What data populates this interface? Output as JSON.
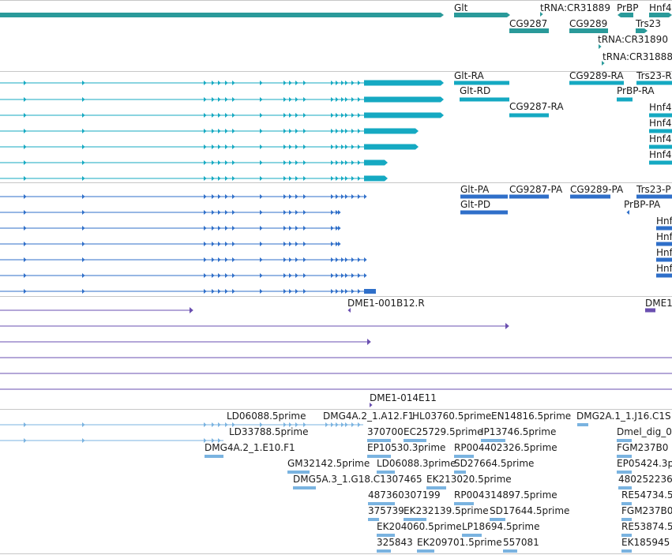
{
  "colors": {
    "gene": "#2a9a9a",
    "transcript": "#15a9c2",
    "protein": "#2f6fc9",
    "est": "#6a4fb0",
    "cdna": "#7ab3e0",
    "separator": "#c7c7c7"
  },
  "tracks": {
    "genes": {
      "labels": [
        "Glt",
        "tRNA:CR31889",
        "PrBP",
        "Hnf4",
        "CG9287",
        "CG9289",
        "Trs23",
        "tRNA:CR31890",
        "tRNA:CR31888"
      ]
    },
    "transcripts": {
      "labels": [
        "Glt-RA",
        "Glt-RD",
        "CG9287-RA",
        "CG9289-RA",
        "Trs23-R",
        "PrBP-RA",
        "Hnf4",
        "Hnf4",
        "Hnf4",
        "Hnf4"
      ]
    },
    "proteins": {
      "labels": [
        "Glt-PA",
        "Glt-PD",
        "CG9287-PA",
        "CG9289-PA",
        "Trs23-P",
        "PrBP-PA",
        "Hnf",
        "Hnf",
        "Hnf",
        "Hnf"
      ]
    },
    "ests": {
      "labels": [
        "DME1-001B12.R",
        "DME1",
        "DME1-014E11"
      ]
    },
    "cdnas": {
      "labels": [
        "LD06088.5prime",
        "DMG4A.2_1.A12.F1",
        "HL03760.5prime",
        "EN14816.5prime",
        "DMG2A.1_1.J16.C1S",
        "LD33788.5prime",
        "370700",
        "EC25729.5prime",
        "IP13746.5prime",
        "Dmel_dig_0",
        "DMG4A.2_1.E10.F1",
        "EP10530.3prime",
        "RP004402326.5prime",
        "FGM237B0",
        "GM32142.5prime",
        "LD06088.3prime",
        "SD27664.5prime",
        "EP05424.3p",
        "DMG5A.3_1.G18.C1307465",
        "EK213020.5prime",
        "480252236",
        "487360307199",
        "RP004314897.5prime",
        "RE54734.5",
        "375739",
        "EK232139.5prime",
        "SD17644.5prime",
        "FGM237B0",
        "EK204060.5prime",
        "LP18694.5prime",
        "RE53874.5",
        "325843",
        "EK209701.5prime",
        "557081",
        "EK185945"
      ]
    }
  }
}
